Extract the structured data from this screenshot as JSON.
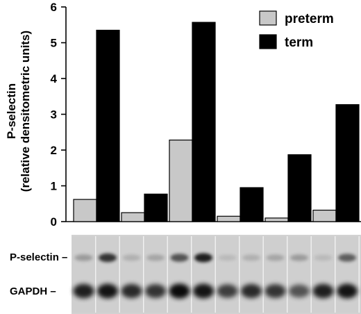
{
  "chart_data": {
    "type": "bar",
    "ylabel_line1": "P-selectin",
    "ylabel_line2": "(relative densitometric units)",
    "ylim": [
      0,
      6
    ],
    "yticks": [
      "0",
      "1",
      "2",
      "3",
      "4",
      "5",
      "6"
    ],
    "grid": false,
    "legend_position": "top-right",
    "series": [
      {
        "name": "preterm",
        "color": "#c8c8c8",
        "values": [
          0.62,
          0.25,
          2.28,
          0.15,
          0.1,
          0.32
        ]
      },
      {
        "name": "term",
        "color": "#000000",
        "values": [
          5.35,
          0.77,
          5.57,
          0.95,
          1.87,
          3.27
        ]
      }
    ]
  },
  "blot": {
    "row_labels": [
      "P-selectin –",
      "GAPDH –"
    ],
    "lanes": [
      {
        "band1": 0.25,
        "band2": 0.85
      },
      {
        "band1": 0.75,
        "band2": 0.9
      },
      {
        "band1": 0.15,
        "band2": 0.8
      },
      {
        "band1": 0.2,
        "band2": 0.75
      },
      {
        "band1": 0.6,
        "band2": 0.95
      },
      {
        "band1": 0.85,
        "band2": 0.9
      },
      {
        "band1": 0.1,
        "band2": 0.7
      },
      {
        "band1": 0.15,
        "band2": 0.8
      },
      {
        "band1": 0.2,
        "band2": 0.75
      },
      {
        "band1": 0.25,
        "band2": 0.6
      },
      {
        "band1": 0.1,
        "band2": 0.85
      },
      {
        "band1": 0.55,
        "band2": 0.9
      }
    ]
  }
}
